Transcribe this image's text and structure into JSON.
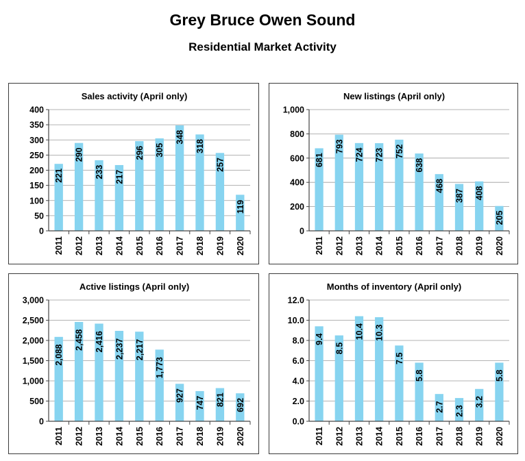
{
  "page": {
    "title": "Grey Bruce Owen Sound",
    "subtitle": "Residential Market Activity"
  },
  "colors": {
    "bar": "#87D4F0",
    "grid": "#9a9a9a",
    "axis": "#444444",
    "border": "#3a3a3a"
  },
  "chart_data": [
    {
      "type": "bar",
      "title": "Sales activity (April only)",
      "categories": [
        "2011",
        "2012",
        "2013",
        "2014",
        "2015",
        "2016",
        "2017",
        "2018",
        "2019",
        "2020"
      ],
      "values": [
        221,
        290,
        233,
        217,
        296,
        305,
        348,
        318,
        257,
        119
      ],
      "value_labels": [
        "221",
        "290",
        "233",
        "217",
        "296",
        "305",
        "348",
        "318",
        "257",
        "119"
      ],
      "ylim": [
        0,
        400
      ],
      "yticks": [
        0,
        50,
        100,
        150,
        200,
        250,
        300,
        350,
        400
      ],
      "ytick_labels": [
        "0",
        "50",
        "100",
        "150",
        "200",
        "250",
        "300",
        "350",
        "400"
      ],
      "grid": true
    },
    {
      "type": "bar",
      "title": "New listings (April only)",
      "categories": [
        "2011",
        "2012",
        "2013",
        "2014",
        "2015",
        "2016",
        "2017",
        "2018",
        "2019",
        "2020"
      ],
      "values": [
        681,
        793,
        724,
        723,
        752,
        638,
        468,
        387,
        408,
        205
      ],
      "value_labels": [
        "681",
        "793",
        "724",
        "723",
        "752",
        "638",
        "468",
        "387",
        "408",
        "205"
      ],
      "ylim": [
        0,
        1000
      ],
      "yticks": [
        0,
        200,
        400,
        600,
        800,
        1000
      ],
      "ytick_labels": [
        "0",
        "200",
        "400",
        "600",
        "800",
        "1,000"
      ],
      "grid": true
    },
    {
      "type": "bar",
      "title": "Active listings (April only)",
      "categories": [
        "2011",
        "2012",
        "2013",
        "2014",
        "2015",
        "2016",
        "2017",
        "2018",
        "2019",
        "2020"
      ],
      "values": [
        2088,
        2458,
        2416,
        2237,
        2217,
        1773,
        927,
        747,
        821,
        692
      ],
      "value_labels": [
        "2,088",
        "2,458",
        "2,416",
        "2,237",
        "2,217",
        "1,773",
        "927",
        "747",
        "821",
        "692"
      ],
      "ylim": [
        0,
        3000
      ],
      "yticks": [
        0,
        500,
        1000,
        1500,
        2000,
        2500,
        3000
      ],
      "ytick_labels": [
        "0",
        "500",
        "1,000",
        "1,500",
        "2,000",
        "2,500",
        "3,000"
      ],
      "grid": true
    },
    {
      "type": "bar",
      "title": "Months of inventory (April only)",
      "categories": [
        "2011",
        "2012",
        "2013",
        "2014",
        "2015",
        "2016",
        "2017",
        "2018",
        "2019",
        "2020"
      ],
      "values": [
        9.4,
        8.5,
        10.4,
        10.3,
        7.5,
        5.8,
        2.7,
        2.3,
        3.2,
        5.8
      ],
      "value_labels": [
        "9.4",
        "8.5",
        "10.4",
        "10.3",
        "7.5",
        "5.8",
        "2.7",
        "2.3",
        "3.2",
        "5.8"
      ],
      "ylim": [
        0,
        12
      ],
      "yticks": [
        0,
        2,
        4,
        6,
        8,
        10,
        12
      ],
      "ytick_labels": [
        "0.0",
        "2.0",
        "4.0",
        "6.0",
        "8.0",
        "10.0",
        "12.0"
      ],
      "grid": true
    }
  ]
}
